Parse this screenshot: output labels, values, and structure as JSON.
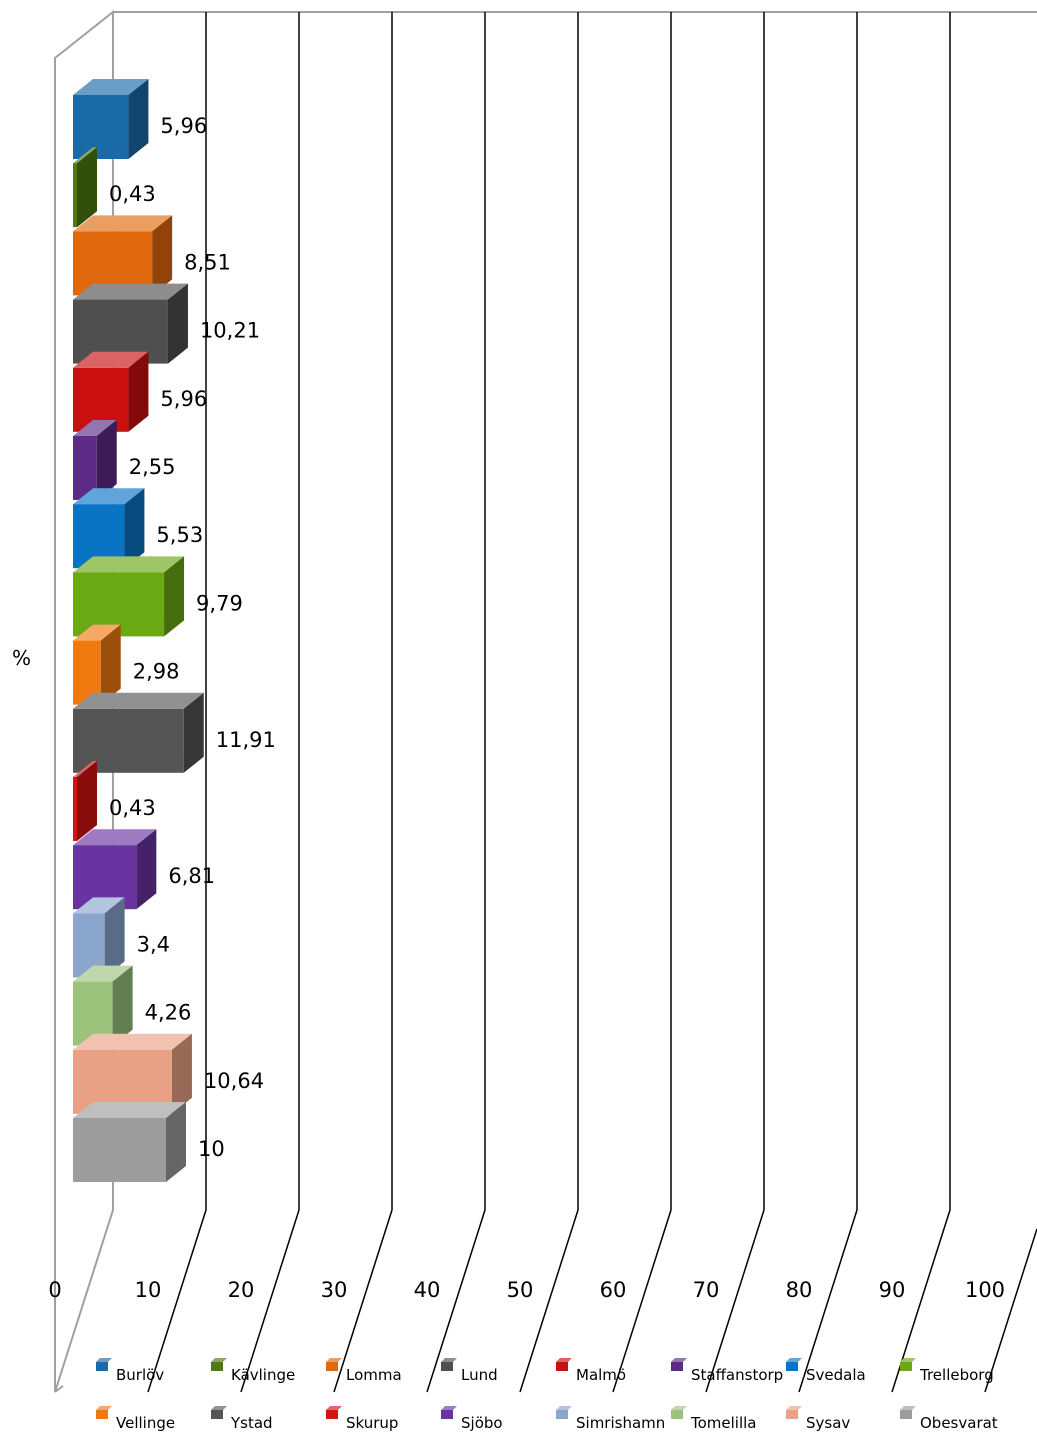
{
  "chart_data": {
    "type": "bar",
    "orientation": "horizontal",
    "style": "3d",
    "ylabel": "%",
    "xlim": [
      0,
      100
    ],
    "x_ticks": [
      "0",
      "10",
      "20",
      "30",
      "40",
      "50",
      "60",
      "70",
      "80",
      "90",
      "100"
    ],
    "grid": true,
    "legend_position": "bottom",
    "series": [
      {
        "name": "Burlöv",
        "value": 5.96,
        "label": "5,96",
        "color": "#1a6aa8"
      },
      {
        "name": "Kävlinge",
        "value": 0.43,
        "label": "0,43",
        "color": "#4d7a12"
      },
      {
        "name": "Lomma",
        "value": 8.51,
        "label": "8,51",
        "color": "#e0690d"
      },
      {
        "name": "Lund",
        "value": 10.21,
        "label": "10,21",
        "color": "#4f4f4f"
      },
      {
        "name": "Malmö",
        "value": 5.96,
        "label": "5,96",
        "color": "#c90f0f"
      },
      {
        "name": "Staffanstorp",
        "value": 2.55,
        "label": "2,55",
        "color": "#5b2b86"
      },
      {
        "name": "Svedala",
        "value": 5.53,
        "label": "5,53",
        "color": "#0a74c4"
      },
      {
        "name": "Trelleborg",
        "value": 9.79,
        "label": "9,79",
        "color": "#6aa814"
      },
      {
        "name": "Vellinge",
        "value": 2.98,
        "label": "2,98",
        "color": "#f07a10"
      },
      {
        "name": "Ystad",
        "value": 11.91,
        "label": "11,91",
        "color": "#555555"
      },
      {
        "name": "Skurup",
        "value": 0.43,
        "label": "0,43",
        "color": "#d41414"
      },
      {
        "name": "Sjöbo",
        "value": 6.81,
        "label": "6,81",
        "color": "#6a34a0"
      },
      {
        "name": "Simrishamn",
        "value": 3.4,
        "label": "3,4",
        "color": "#8aa6cc"
      },
      {
        "name": "Tomelilla",
        "value": 4.26,
        "label": "4,26",
        "color": "#9cc27c"
      },
      {
        "name": "Sysav",
        "value": 10.64,
        "label": "10,64",
        "color": "#e9a186"
      },
      {
        "name": "Obesvarat",
        "value": 10,
        "label": "10",
        "color": "#9d9d9d"
      }
    ]
  }
}
